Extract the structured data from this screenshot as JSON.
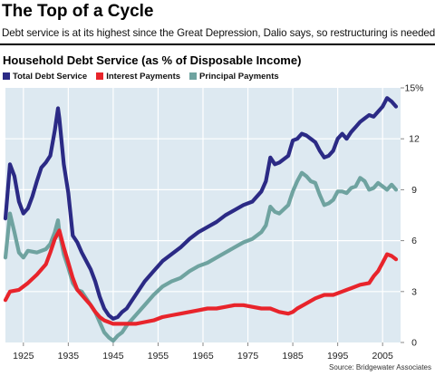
{
  "header": {
    "title": "The Top of a Cycle",
    "subtitle": "Debt service is at its highest since the Great Depression, Dalio says, so restructuring is needed."
  },
  "source": "Source: Bridgewater Associates",
  "colors": {
    "background": "#dde9f1",
    "grid": "#ffffff",
    "total": "#2b2a85",
    "interest": "#e8242b",
    "principal": "#6fa3a0"
  },
  "chart_data": {
    "type": "line",
    "title": "Household Debt Service (as % of Disposable Income)",
    "xlabel": "",
    "ylabel": "",
    "xlim": [
      1921,
      2009
    ],
    "ylim": [
      0,
      15
    ],
    "grid": true,
    "legend_position": "top-left",
    "x_ticks": [
      "1925",
      "1935",
      "1945",
      "1955",
      "1965",
      "1975",
      "1985",
      "1995",
      "2005"
    ],
    "y_ticks": [
      "0",
      "3",
      "6",
      "9",
      "12",
      "15%"
    ],
    "series": [
      {
        "name": "Total Debt Service",
        "color": "#2b2a85",
        "x": [
          1921,
          1922,
          1923,
          1924,
          1925,
          1926,
          1927,
          1928,
          1929,
          1930,
          1931,
          1932,
          1932.7,
          1933,
          1934,
          1935,
          1936,
          1937,
          1938,
          1939,
          1940,
          1941,
          1942,
          1943,
          1944,
          1945,
          1946,
          1947,
          1948,
          1949,
          1950,
          1952,
          1954,
          1956,
          1958,
          1960,
          1962,
          1964,
          1966,
          1968,
          1970,
          1972,
          1974,
          1976,
          1978,
          1979,
          1980,
          1981,
          1982,
          1984,
          1985,
          1986,
          1987,
          1988,
          1989,
          1990,
          1991,
          1992,
          1993,
          1994,
          1995,
          1996,
          1997,
          1998,
          1999,
          2000,
          2001,
          2002,
          2003,
          2004,
          2005,
          2006,
          2007,
          2008
        ],
        "values": [
          7.3,
          10.5,
          9.8,
          8.3,
          7.6,
          7.9,
          8.6,
          9.5,
          10.3,
          10.6,
          11.0,
          12.5,
          13.8,
          13.2,
          10.5,
          8.8,
          6.3,
          5.9,
          5.3,
          4.8,
          4.3,
          3.6,
          2.7,
          2.0,
          1.6,
          1.4,
          1.5,
          1.8,
          2.0,
          2.4,
          2.8,
          3.6,
          4.2,
          4.8,
          5.2,
          5.6,
          6.1,
          6.5,
          6.8,
          7.1,
          7.5,
          7.8,
          8.1,
          8.3,
          8.9,
          9.5,
          10.9,
          10.5,
          10.6,
          11.0,
          11.9,
          12.0,
          12.3,
          12.2,
          12.0,
          11.8,
          11.3,
          10.9,
          11.0,
          11.3,
          12.0,
          12.3,
          12.0,
          12.4,
          12.7,
          13.0,
          13.2,
          13.4,
          13.3,
          13.6,
          13.9,
          14.4,
          14.2,
          13.9
        ]
      },
      {
        "name": "Interest Payments",
        "color": "#e8242b",
        "x": [
          1921,
          1922,
          1924,
          1926,
          1928,
          1930,
          1931,
          1932,
          1933,
          1934,
          1935,
          1936,
          1937,
          1938,
          1939,
          1940,
          1941,
          1942,
          1943,
          1944,
          1945,
          1946,
          1948,
          1950,
          1952,
          1954,
          1956,
          1958,
          1960,
          1962,
          1964,
          1966,
          1968,
          1970,
          1972,
          1974,
          1976,
          1978,
          1980,
          1982,
          1984,
          1985,
          1986,
          1988,
          1990,
          1992,
          1994,
          1996,
          1998,
          2000,
          2002,
          2003,
          2004,
          2005,
          2006,
          2007,
          2008
        ],
        "values": [
          2.5,
          3.0,
          3.1,
          3.5,
          4.0,
          4.6,
          5.3,
          6.1,
          6.6,
          5.6,
          4.7,
          3.8,
          3.1,
          2.8,
          2.5,
          2.2,
          1.8,
          1.5,
          1.3,
          1.2,
          1.1,
          1.1,
          1.1,
          1.1,
          1.2,
          1.3,
          1.5,
          1.6,
          1.7,
          1.8,
          1.9,
          2.0,
          2.0,
          2.1,
          2.2,
          2.2,
          2.1,
          2.0,
          2.0,
          1.8,
          1.7,
          1.8,
          2.0,
          2.3,
          2.6,
          2.8,
          2.8,
          3.0,
          3.2,
          3.4,
          3.5,
          3.9,
          4.2,
          4.7,
          5.2,
          5.1,
          4.9
        ]
      },
      {
        "name": "Principal Payments",
        "color": "#6fa3a0",
        "x": [
          1921,
          1922,
          1923,
          1924,
          1925,
          1926,
          1928,
          1930,
          1931,
          1932,
          1932.7,
          1933,
          1934,
          1935,
          1936,
          1937,
          1938,
          1939,
          1940,
          1941,
          1942,
          1943,
          1944,
          1945,
          1946,
          1947,
          1948,
          1949,
          1950,
          1952,
          1954,
          1956,
          1958,
          1960,
          1962,
          1964,
          1966,
          1968,
          1970,
          1972,
          1974,
          1976,
          1978,
          1979,
          1980,
          1981,
          1982,
          1984,
          1985,
          1986,
          1987,
          1988,
          1989,
          1990,
          1991,
          1992,
          1993,
          1994,
          1995,
          1996,
          1997,
          1998,
          1999,
          2000,
          2001,
          2002,
          2003,
          2004,
          2005,
          2006,
          2007,
          2008
        ],
        "values": [
          5.0,
          7.6,
          6.5,
          5.3,
          5.0,
          5.4,
          5.3,
          5.5,
          5.8,
          6.5,
          7.2,
          6.5,
          5.2,
          4.4,
          3.5,
          3.1,
          3.0,
          2.6,
          2.2,
          1.8,
          1.2,
          0.6,
          0.3,
          0.1,
          0.4,
          0.6,
          1.0,
          1.3,
          1.6,
          2.2,
          2.8,
          3.3,
          3.6,
          3.8,
          4.2,
          4.5,
          4.7,
          5.0,
          5.3,
          5.6,
          5.9,
          6.1,
          6.5,
          6.9,
          8.0,
          7.7,
          7.6,
          8.1,
          8.9,
          9.5,
          10.0,
          9.8,
          9.5,
          9.4,
          8.7,
          8.1,
          8.2,
          8.4,
          8.9,
          8.9,
          8.8,
          9.1,
          9.2,
          9.7,
          9.5,
          9.0,
          9.1,
          9.4,
          9.2,
          9.0,
          9.3,
          9.0
        ]
      }
    ]
  }
}
